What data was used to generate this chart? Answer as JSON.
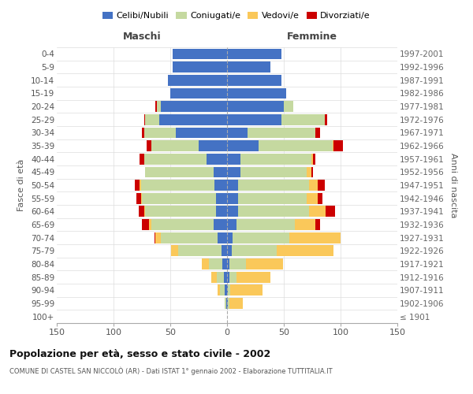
{
  "age_groups": [
    "100+",
    "95-99",
    "90-94",
    "85-89",
    "80-84",
    "75-79",
    "70-74",
    "65-69",
    "60-64",
    "55-59",
    "50-54",
    "45-49",
    "40-44",
    "35-39",
    "30-34",
    "25-29",
    "20-24",
    "15-19",
    "10-14",
    "5-9",
    "0-4"
  ],
  "birth_years": [
    "≤ 1901",
    "1902-1906",
    "1907-1911",
    "1912-1916",
    "1917-1921",
    "1922-1926",
    "1927-1931",
    "1932-1936",
    "1937-1941",
    "1942-1946",
    "1947-1951",
    "1952-1956",
    "1957-1961",
    "1962-1966",
    "1967-1971",
    "1972-1976",
    "1977-1981",
    "1982-1986",
    "1987-1991",
    "1992-1996",
    "1997-2001"
  ],
  "maschi": {
    "celibi": [
      0,
      1,
      2,
      3,
      4,
      5,
      8,
      12,
      10,
      10,
      11,
      12,
      18,
      25,
      45,
      60,
      58,
      50,
      52,
      48,
      48
    ],
    "coniugati": [
      0,
      1,
      4,
      6,
      12,
      38,
      50,
      55,
      62,
      65,
      65,
      60,
      55,
      42,
      28,
      12,
      4,
      0,
      0,
      0,
      0
    ],
    "vedovi": [
      0,
      0,
      2,
      5,
      6,
      6,
      5,
      2,
      1,
      1,
      1,
      0,
      0,
      0,
      0,
      0,
      0,
      0,
      0,
      0,
      0
    ],
    "divorziati": [
      0,
      0,
      0,
      0,
      0,
      0,
      1,
      6,
      5,
      4,
      4,
      0,
      4,
      4,
      2,
      1,
      1,
      0,
      0,
      0,
      0
    ]
  },
  "femmine": {
    "nubili": [
      0,
      1,
      1,
      2,
      2,
      4,
      5,
      8,
      10,
      10,
      10,
      12,
      12,
      28,
      18,
      48,
      50,
      52,
      48,
      38,
      48
    ],
    "coniugate": [
      0,
      1,
      2,
      6,
      15,
      40,
      50,
      52,
      62,
      60,
      62,
      58,
      62,
      65,
      60,
      38,
      8,
      0,
      0,
      0,
      0
    ],
    "vedove": [
      0,
      12,
      28,
      30,
      32,
      50,
      45,
      18,
      15,
      10,
      8,
      4,
      2,
      1,
      0,
      0,
      0,
      0,
      0,
      0,
      0
    ],
    "divorziate": [
      0,
      0,
      0,
      0,
      0,
      0,
      0,
      4,
      8,
      4,
      6,
      2,
      2,
      8,
      4,
      2,
      0,
      0,
      0,
      0,
      0
    ]
  },
  "color_celibi": "#4472C4",
  "color_coniugati": "#C5D9A0",
  "color_vedovi": "#FAC85A",
  "color_divorziati": "#CC0000",
  "title": "Popolazione per età, sesso e stato civile - 2002",
  "subtitle": "COMUNE DI CASTEL SAN NICCOLÒ (AR) - Dati ISTAT 1° gennaio 2002 - Elaborazione TUTTITALIA.IT",
  "ylabel_left": "Fasce di età",
  "ylabel_right": "Anni di nascita",
  "xlabel_maschi": "Maschi",
  "xlabel_femmine": "Femmine",
  "xlim": 150,
  "background_color": "#ffffff",
  "grid_color": "#cccccc"
}
